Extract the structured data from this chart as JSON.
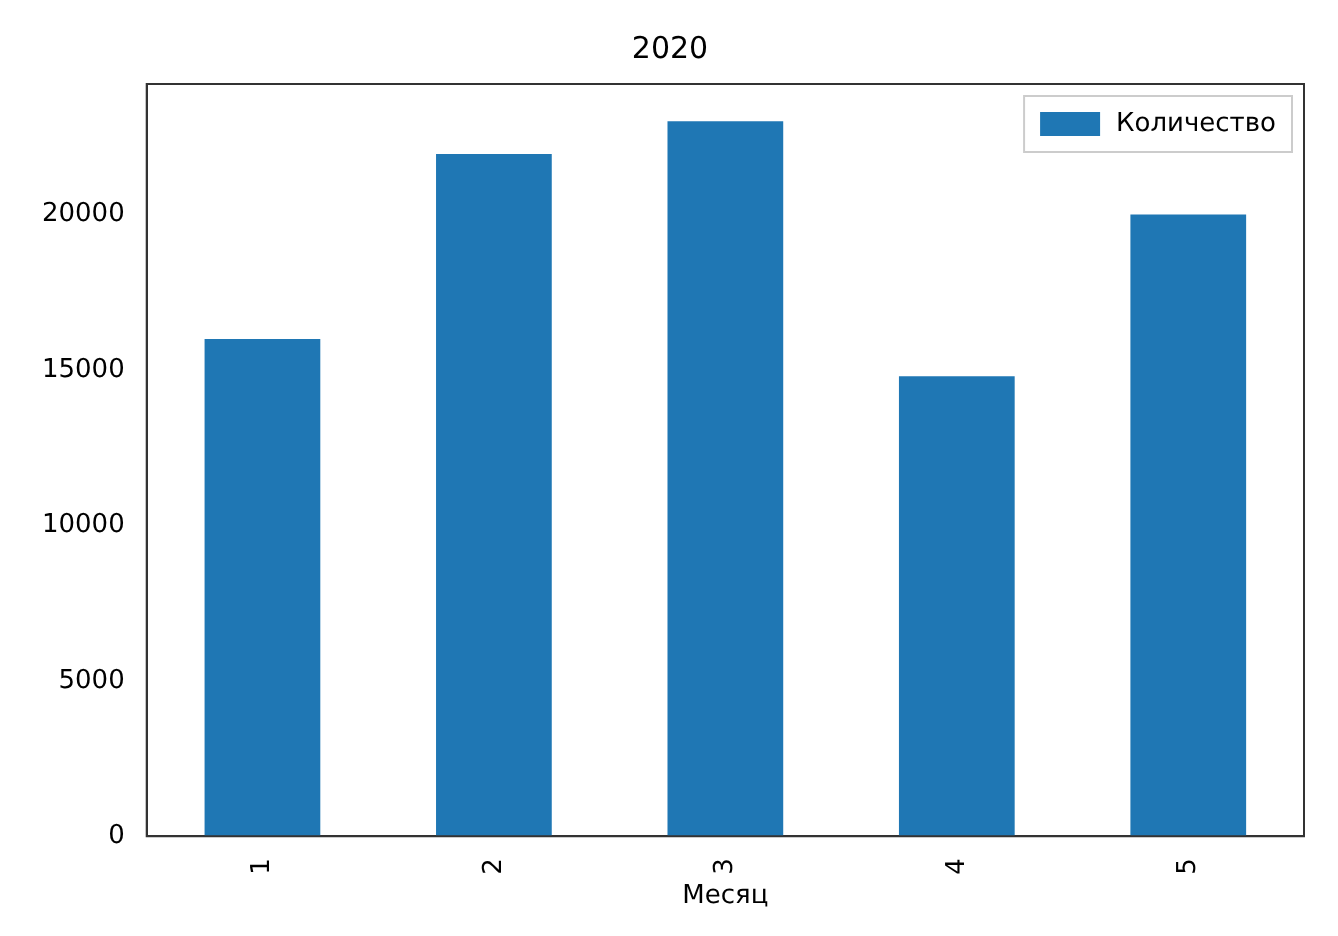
{
  "chart_data": {
    "type": "bar",
    "title": "2020",
    "xlabel": "Месяц",
    "categories": [
      "1",
      "2",
      "3",
      "4",
      "5"
    ],
    "series": [
      {
        "name": "Количество",
        "color": "#1f77b4",
        "values": [
          16000,
          21950,
          23000,
          14800,
          20000
        ]
      }
    ],
    "ylim": [
      0,
      24200
    ],
    "yticks": [
      0,
      5000,
      10000,
      15000,
      20000
    ],
    "grid": false,
    "legend": "top right"
  }
}
